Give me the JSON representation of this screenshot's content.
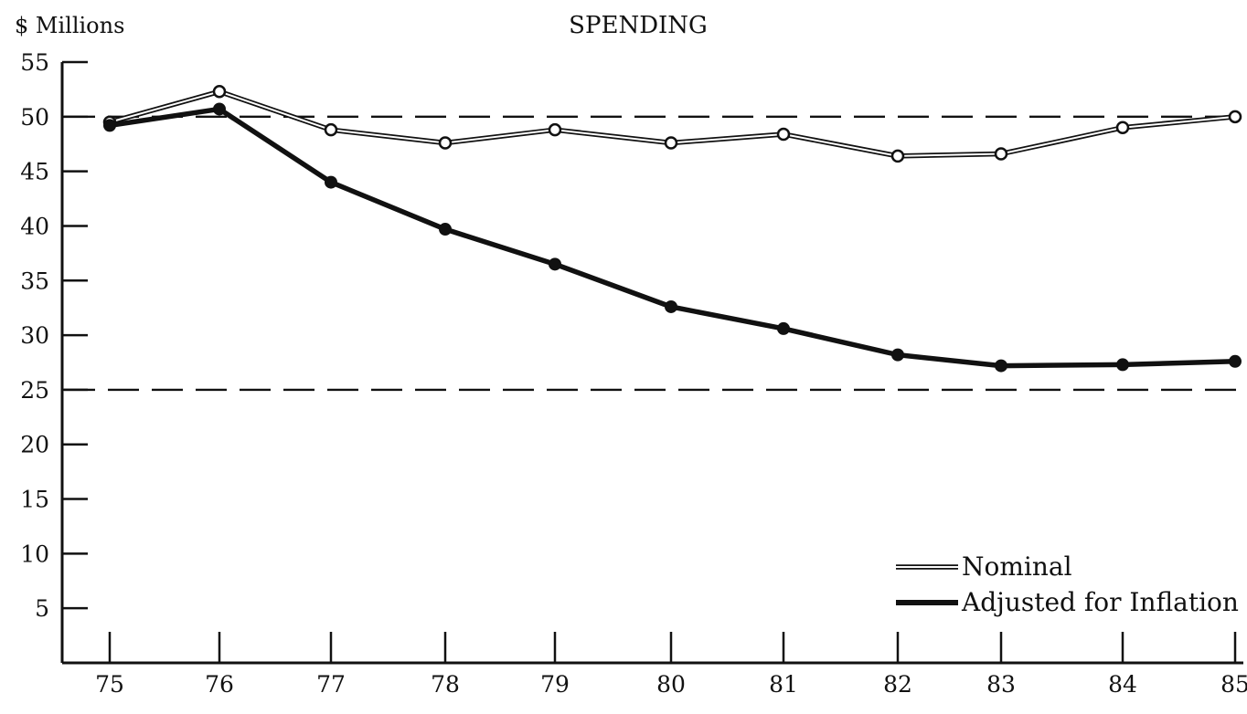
{
  "chart_data": {
    "type": "line",
    "title": "SPENDING",
    "ylabel": "$ Millions",
    "xlabel": "",
    "x": [
      "75",
      "76",
      "77",
      "78",
      "79",
      "80",
      "81",
      "82",
      "83",
      "84",
      "85"
    ],
    "ylim": [
      0,
      55
    ],
    "yticks": [
      5,
      10,
      15,
      20,
      25,
      30,
      35,
      40,
      45,
      50,
      55
    ],
    "reference_lines": [
      50,
      25
    ],
    "series": [
      {
        "name": "Nominal",
        "style": "double",
        "color": "#111111",
        "values": [
          49.5,
          52.3,
          48.8,
          47.6,
          48.8,
          47.6,
          48.4,
          46.4,
          46.6,
          49.0,
          50.0
        ]
      },
      {
        "name": "Adjusted for Inflation",
        "style": "solid",
        "color": "#111111",
        "values": [
          49.2,
          50.7,
          44.0,
          39.7,
          36.5,
          32.6,
          30.6,
          28.2,
          27.2,
          27.3,
          27.6
        ]
      }
    ],
    "legend": {
      "position": "bottom-right",
      "items": [
        "Nominal",
        "Adjusted for Inflation"
      ]
    },
    "grid": false
  }
}
